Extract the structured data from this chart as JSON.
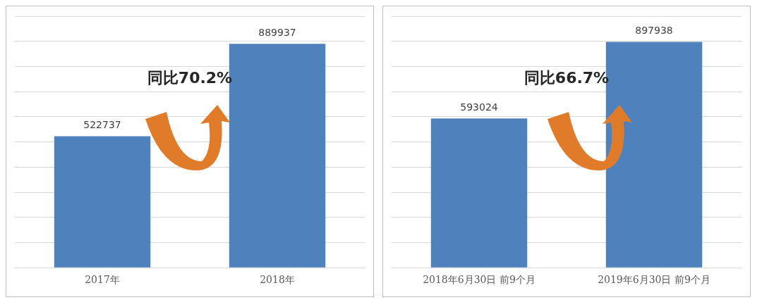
{
  "chart_data": [
    {
      "type": "bar",
      "categories": [
        "2017年",
        "2018年"
      ],
      "values": [
        522737,
        889937
      ],
      "color": "#4f81bd",
      "ylim": [
        0,
        1000000
      ],
      "yticks": [
        {
          "value": 0,
          "label": null
        },
        {
          "value": 100000,
          "label": null
        },
        {
          "value": 200000,
          "label": null
        },
        {
          "value": 300000,
          "label": null
        },
        {
          "value": 400000,
          "label": null
        },
        {
          "value": 500000,
          "label": null
        },
        {
          "value": 600000,
          "label": null
        },
        {
          "value": 700000,
          "label": null
        },
        {
          "value": 800000,
          "label": null
        },
        {
          "value": 900000,
          "label": null
        },
        {
          "value": 1000000,
          "label": null
        }
      ],
      "grid": "y",
      "tick_labels": "x",
      "data_labels": true,
      "annotations": [
        "同比70.2%"
      ]
    },
    {
      "type": "bar",
      "categories": [
        "2018年6月30日 前9个月",
        "2019年6月30日 前9个月"
      ],
      "values": [
        593024,
        897938
      ],
      "color": "#4f81bd",
      "ylim": [
        0,
        1000000
      ],
      "yticks": [
        {
          "value": 0,
          "label": null
        },
        {
          "value": 100000,
          "label": null
        },
        {
          "value": 200000,
          "label": null
        },
        {
          "value": 300000,
          "label": null
        },
        {
          "value": 400000,
          "label": null
        },
        {
          "value": 500000,
          "label": null
        },
        {
          "value": 600000,
          "label": null
        },
        {
          "value": 700000,
          "label": null
        },
        {
          "value": 800000,
          "label": null
        },
        {
          "value": 900000,
          "label": null
        },
        {
          "value": 1000000,
          "label": null
        }
      ],
      "grid": "y",
      "tick_labels": "x",
      "data_labels": true,
      "annotations": [
        "同比66.7%"
      ]
    }
  ]
}
